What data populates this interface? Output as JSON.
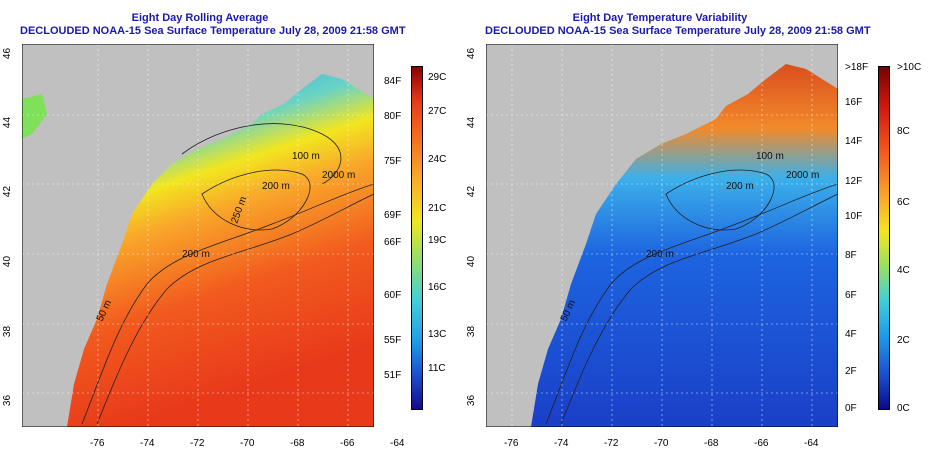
{
  "left_panel": {
    "title": "Eight Day Rolling Average",
    "subtitle": "DECLOUDED NOAA-15 Sea Surface Temperature July 28, 2009 21:58 GMT",
    "colorbar_f": [
      "84F",
      "80F",
      "75F",
      "69F",
      "66F",
      "60F",
      "55F",
      "51F"
    ],
    "colorbar_c": [
      "29C",
      "27C",
      "24C",
      "21C",
      "19C",
      "16C",
      "13C",
      "11C"
    ],
    "contours": [
      "100 m",
      "200 m",
      "2000 m",
      "50 m",
      "200 m",
      "50 m",
      "250 m"
    ]
  },
  "right_panel": {
    "title": "Eight Day Temperature Variability",
    "subtitle": "DECLOUDED NOAA-15 Sea Surface Temperature July 28, 2009 21:58 GMT",
    "colorbar_f": [
      ">18F",
      "16F",
      "14F",
      "12F",
      "10F",
      "8F",
      "6F",
      "4F",
      "2F",
      "0F"
    ],
    "colorbar_c": [
      ">10C",
      "8C",
      "6C",
      "4C",
      "2C",
      "0C"
    ],
    "contours": [
      "100 m",
      "200 m",
      "2000 m",
      "50 m",
      "200 m"
    ]
  },
  "x_ticks": [
    "-76",
    "-74",
    "-72",
    "-70",
    "-68",
    "-66",
    "-64"
  ],
  "y_ticks": [
    "46",
    "44",
    "42",
    "40",
    "38",
    "36"
  ],
  "colors": {
    "title": "#1a1aa8",
    "land": "#c0c0c0"
  }
}
